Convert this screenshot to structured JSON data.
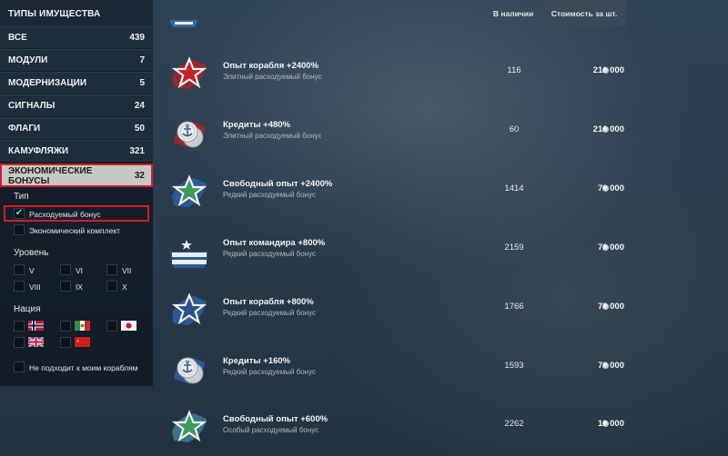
{
  "sidebar": {
    "title": "ТИПЫ ИМУЩЕСТВА",
    "categories": [
      {
        "label": "ВСЕ",
        "count": "439"
      },
      {
        "label": "МОДУЛИ",
        "count": "7"
      },
      {
        "label": "МОДЕРНИЗАЦИИ",
        "count": "5"
      },
      {
        "label": "СИГНАЛЫ",
        "count": "24"
      },
      {
        "label": "ФЛАГИ",
        "count": "50"
      },
      {
        "label": "КАМУФЛЯЖИ",
        "count": "321"
      },
      {
        "label": "ЭКОНОМИЧЕСКИЕ БОНУСЫ",
        "count": "32"
      }
    ],
    "active_category": "ЭКОНОМИЧЕСКИЕ БОНУСЫ",
    "type_title": "Тип",
    "types": [
      {
        "label": "Расходуемый бонус",
        "checked": true
      },
      {
        "label": "Экономический комплект",
        "checked": false
      }
    ],
    "level_title": "Уровень",
    "levels": [
      "V",
      "VI",
      "VII",
      "VIII",
      "IX",
      "X"
    ],
    "nation_title": "Нация",
    "nations": [
      "norway-flag-icon",
      "italy-flag-icon",
      "japan-flag-icon",
      "uk-flag-icon",
      "ussr-flag-icon"
    ],
    "not_fit_label": "Не подходит к моим кораблям"
  },
  "header": {
    "in_stock": "В наличии",
    "unit_price": "Стоимость за шт."
  },
  "colors": {
    "accent_red": "#d11e2a",
    "active_bg": "#c7c7c7",
    "check_green": "#7fd38d"
  },
  "items": [
    {
      "icon": "red-star-icon",
      "name": "Опыт корабля +2400%",
      "subtitle": "Элитный расходуемый бонус",
      "qty": "116",
      "price": "216 000"
    },
    {
      "icon": "silver-coins-anchor-icon",
      "name": "Кредиты +480%",
      "subtitle": "Элитный расходуемый бонус",
      "qty": "60",
      "price": "216 000"
    },
    {
      "icon": "green-star-icon",
      "name": "Свободный опыт +2400%",
      "subtitle": "Редкий расходуемый бонус",
      "qty": "1414",
      "price": "72 000"
    },
    {
      "icon": "commander-chevron-icon",
      "name": "Опыт командира +800%",
      "subtitle": "Редкий расходуемый бонус",
      "qty": "2159",
      "price": "72 000"
    },
    {
      "icon": "blue-star-icon",
      "name": "Опыт корабля +800%",
      "subtitle": "Редкий расходуемый бонус",
      "qty": "1766",
      "price": "72 000"
    },
    {
      "icon": "silver-coins-anchor-icon",
      "name": "Кредиты +160%",
      "subtitle": "Редкий расходуемый бонус",
      "qty": "1593",
      "price": "72 000"
    },
    {
      "icon": "green-star-icon",
      "name": "Свободный опыт +600%",
      "subtitle": "Особый расходуемый бонус",
      "qty": "2262",
      "price": "18 000"
    }
  ]
}
